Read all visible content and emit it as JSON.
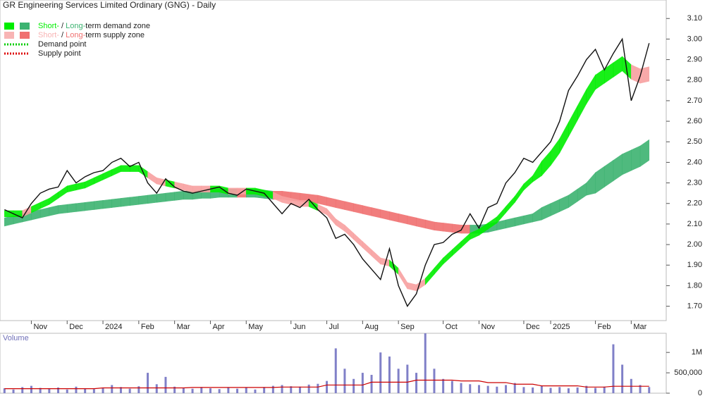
{
  "chart_data": {
    "type": "stock",
    "title": "GR Engineering Services Limited Ordinary (GNG) - Daily",
    "legend": [
      {
        "short": "Short-",
        "sep": " / ",
        "long": "Long-",
        "rest": "term demand zone",
        "short_color": "#00ee00",
        "long_color": "#3cb371"
      },
      {
        "short": "Short-",
        "sep": " / ",
        "long": "Long-",
        "rest": "term supply zone",
        "short_color": "#f8b4b4",
        "long_color": "#f07070"
      },
      {
        "label": "Demand point",
        "color": "#00cc00"
      },
      {
        "label": "Supply point",
        "color": "#dd0000"
      }
    ],
    "categories": [
      null,
      null,
      null,
      "Nov",
      null,
      null,
      null,
      "Dec",
      null,
      null,
      null,
      "2024",
      null,
      null,
      null,
      "Feb",
      null,
      null,
      null,
      "Mar",
      null,
      null,
      null,
      "Apr",
      null,
      null,
      null,
      "May",
      null,
      null,
      null,
      null,
      "Jun",
      null,
      null,
      null,
      "Jul",
      null,
      null,
      null,
      "Aug",
      null,
      null,
      null,
      "Sep",
      null,
      null,
      null,
      null,
      "Oct",
      null,
      null,
      null,
      "Nov",
      null,
      null,
      null,
      null,
      "Dec",
      null,
      null,
      "2025",
      null,
      null,
      null,
      null,
      "Feb",
      null,
      null,
      null,
      "Mar",
      null,
      null
    ],
    "series": [
      {
        "name": "Price",
        "color": "#111111",
        "values": [
          2.17,
          2.15,
          2.13,
          2.2,
          2.25,
          2.27,
          2.28,
          2.36,
          2.3,
          2.33,
          2.35,
          2.36,
          2.4,
          2.42,
          2.38,
          2.4,
          2.3,
          2.25,
          2.32,
          2.28,
          2.26,
          2.25,
          2.26,
          2.27,
          2.28,
          2.25,
          2.24,
          2.27,
          2.26,
          2.25,
          2.2,
          2.15,
          2.2,
          2.18,
          2.22,
          2.17,
          2.13,
          2.03,
          2.05,
          2.0,
          1.93,
          1.88,
          1.83,
          1.98,
          1.8,
          1.7,
          1.76,
          1.9,
          2.0,
          2.01,
          2.05,
          2.07,
          2.15,
          2.08,
          2.18,
          2.2,
          2.3,
          2.35,
          2.42,
          2.4,
          2.45,
          2.5,
          2.6,
          2.75,
          2.82,
          2.9,
          2.95,
          2.85,
          2.93,
          3.0,
          2.7,
          2.82,
          2.98
        ]
      }
    ],
    "zones": [
      {
        "demand_color": "#3cb371",
        "supply_color": "#f07070",
        "lower": [
          2.09,
          2.1,
          2.11,
          2.12,
          2.13,
          2.14,
          2.15,
          2.155,
          2.16,
          2.165,
          2.17,
          2.175,
          2.18,
          2.185,
          2.19,
          2.195,
          2.2,
          2.205,
          2.21,
          2.215,
          2.22,
          2.22,
          2.225,
          2.225,
          2.23,
          2.23,
          2.23,
          2.23,
          2.23,
          2.225,
          2.22,
          2.22,
          2.215,
          2.21,
          2.205,
          2.2,
          2.19,
          2.18,
          2.17,
          2.16,
          2.15,
          2.14,
          2.13,
          2.12,
          2.11,
          2.1,
          2.09,
          2.08,
          2.07,
          2.065,
          2.06,
          2.055,
          2.055,
          2.055,
          2.06,
          2.07,
          2.08,
          2.09,
          2.1,
          2.11,
          2.12,
          2.14,
          2.16,
          2.18,
          2.21,
          2.24,
          2.25,
          2.28,
          2.31,
          2.34,
          2.36,
          2.38,
          2.41
        ],
        "upper": [
          2.13,
          2.14,
          2.15,
          2.16,
          2.17,
          2.18,
          2.19,
          2.195,
          2.2,
          2.205,
          2.21,
          2.215,
          2.22,
          2.225,
          2.23,
          2.235,
          2.24,
          2.245,
          2.25,
          2.255,
          2.26,
          2.26,
          2.265,
          2.265,
          2.27,
          2.27,
          2.27,
          2.27,
          2.27,
          2.265,
          2.26,
          2.26,
          2.255,
          2.25,
          2.245,
          2.24,
          2.23,
          2.22,
          2.21,
          2.2,
          2.19,
          2.18,
          2.17,
          2.16,
          2.15,
          2.14,
          2.13,
          2.12,
          2.11,
          2.105,
          2.1,
          2.095,
          2.095,
          2.095,
          2.1,
          2.11,
          2.12,
          2.13,
          2.14,
          2.15,
          2.18,
          2.2,
          2.22,
          2.24,
          2.27,
          2.3,
          2.35,
          2.38,
          2.41,
          2.44,
          2.46,
          2.48,
          2.51
        ]
      },
      {
        "demand_color": "#00ee00",
        "supply_color": "#f8a0a0",
        "lower": [
          2.135,
          2.135,
          2.135,
          2.155,
          2.175,
          2.195,
          2.225,
          2.255,
          2.265,
          2.275,
          2.295,
          2.315,
          2.335,
          2.355,
          2.355,
          2.355,
          2.325,
          2.295,
          2.285,
          2.275,
          2.265,
          2.255,
          2.255,
          2.255,
          2.255,
          2.245,
          2.245,
          2.245,
          2.245,
          2.235,
          2.225,
          2.205,
          2.195,
          2.185,
          2.185,
          2.165,
          2.145,
          2.095,
          2.065,
          2.025,
          1.985,
          1.945,
          1.905,
          1.895,
          1.855,
          1.785,
          1.775,
          1.805,
          1.855,
          1.905,
          1.945,
          1.985,
          2.025,
          2.045,
          2.075,
          2.105,
          2.155,
          2.205,
          2.265,
          2.305,
          2.335,
          2.385,
          2.445,
          2.525,
          2.605,
          2.685,
          2.755,
          2.785,
          2.815,
          2.845,
          2.805,
          2.785,
          2.795
        ],
        "upper": [
          2.165,
          2.165,
          2.165,
          2.185,
          2.205,
          2.225,
          2.255,
          2.285,
          2.295,
          2.305,
          2.325,
          2.345,
          2.365,
          2.385,
          2.385,
          2.385,
          2.355,
          2.325,
          2.315,
          2.305,
          2.295,
          2.285,
          2.285,
          2.285,
          2.285,
          2.275,
          2.275,
          2.275,
          2.275,
          2.265,
          2.255,
          2.235,
          2.225,
          2.215,
          2.215,
          2.195,
          2.175,
          2.125,
          2.095,
          2.055,
          2.015,
          1.975,
          1.935,
          1.925,
          1.885,
          1.815,
          1.805,
          1.835,
          1.885,
          1.935,
          1.975,
          2.015,
          2.055,
          2.075,
          2.105,
          2.135,
          2.185,
          2.235,
          2.295,
          2.335,
          2.405,
          2.455,
          2.515,
          2.595,
          2.675,
          2.755,
          2.825,
          2.855,
          2.885,
          2.915,
          2.875,
          2.855,
          2.865
        ]
      }
    ],
    "ylim": [
      1.63,
      3.19
    ],
    "yticks": [
      {
        "value": 1.7,
        "label": "1.70"
      },
      {
        "value": 1.8,
        "label": "1.80"
      },
      {
        "value": 1.9,
        "label": "1.90"
      },
      {
        "value": 2.0,
        "label": "2.00"
      },
      {
        "value": 2.1,
        "label": "2.10"
      },
      {
        "value": 2.2,
        "label": "2.20"
      },
      {
        "value": 2.3,
        "label": "2.30"
      },
      {
        "value": 2.4,
        "label": "2.40"
      },
      {
        "value": 2.5,
        "label": "2.50"
      },
      {
        "value": 2.6,
        "label": "2.60"
      },
      {
        "value": 2.7,
        "label": "2.70"
      },
      {
        "value": 2.8,
        "label": "2.80"
      },
      {
        "value": 2.9,
        "label": "2.90"
      },
      {
        "value": 3.0,
        "label": "3.00"
      },
      {
        "value": 3.1,
        "label": "3.10"
      }
    ],
    "volume": {
      "label": "Volume",
      "color": "#8080c8",
      "ma_color": "#cc0000",
      "values": [
        120000,
        90000,
        150000,
        180000,
        130000,
        110000,
        140000,
        90000,
        160000,
        120000,
        100000,
        130000,
        200000,
        150000,
        110000,
        170000,
        500000,
        220000,
        400000,
        160000,
        130000,
        110000,
        150000,
        120000,
        100000,
        140000,
        110000,
        130000,
        90000,
        150000,
        180000,
        200000,
        170000,
        160000,
        210000,
        230000,
        300000,
        1100000,
        600000,
        350000,
        500000,
        450000,
        1000000,
        900000,
        600000,
        700000,
        500000,
        1470000,
        600000,
        350000,
        300000,
        250000,
        220000,
        200000,
        180000,
        160000,
        200000,
        250000,
        150000,
        140000,
        180000,
        130000,
        150000,
        120000,
        140000,
        180000,
        130000,
        160000,
        1200000,
        700000,
        350000,
        200000,
        150000
      ],
      "ma": [
        110000,
        110000,
        110000,
        110000,
        110000,
        110000,
        110000,
        110000,
        110000,
        110000,
        110000,
        130000,
        130000,
        130000,
        130000,
        130000,
        130000,
        130000,
        130000,
        130000,
        130000,
        140000,
        140000,
        140000,
        140000,
        140000,
        140000,
        140000,
        140000,
        140000,
        140000,
        150000,
        150000,
        150000,
        150000,
        150000,
        200000,
        200000,
        200000,
        200000,
        200000,
        270000,
        270000,
        270000,
        270000,
        270000,
        320000,
        320000,
        320000,
        320000,
        320000,
        300000,
        300000,
        300000,
        260000,
        260000,
        260000,
        220000,
        220000,
        220000,
        180000,
        180000,
        180000,
        180000,
        180000,
        150000,
        150000,
        150000,
        170000,
        170000,
        170000,
        170000,
        170000
      ],
      "ylim": [
        0,
        1470000
      ],
      "yticks": [
        0,
        {
          "value": 500000,
          "label": "500,000"
        },
        {
          "value": 1000000,
          "label": "1M"
        }
      ]
    }
  }
}
